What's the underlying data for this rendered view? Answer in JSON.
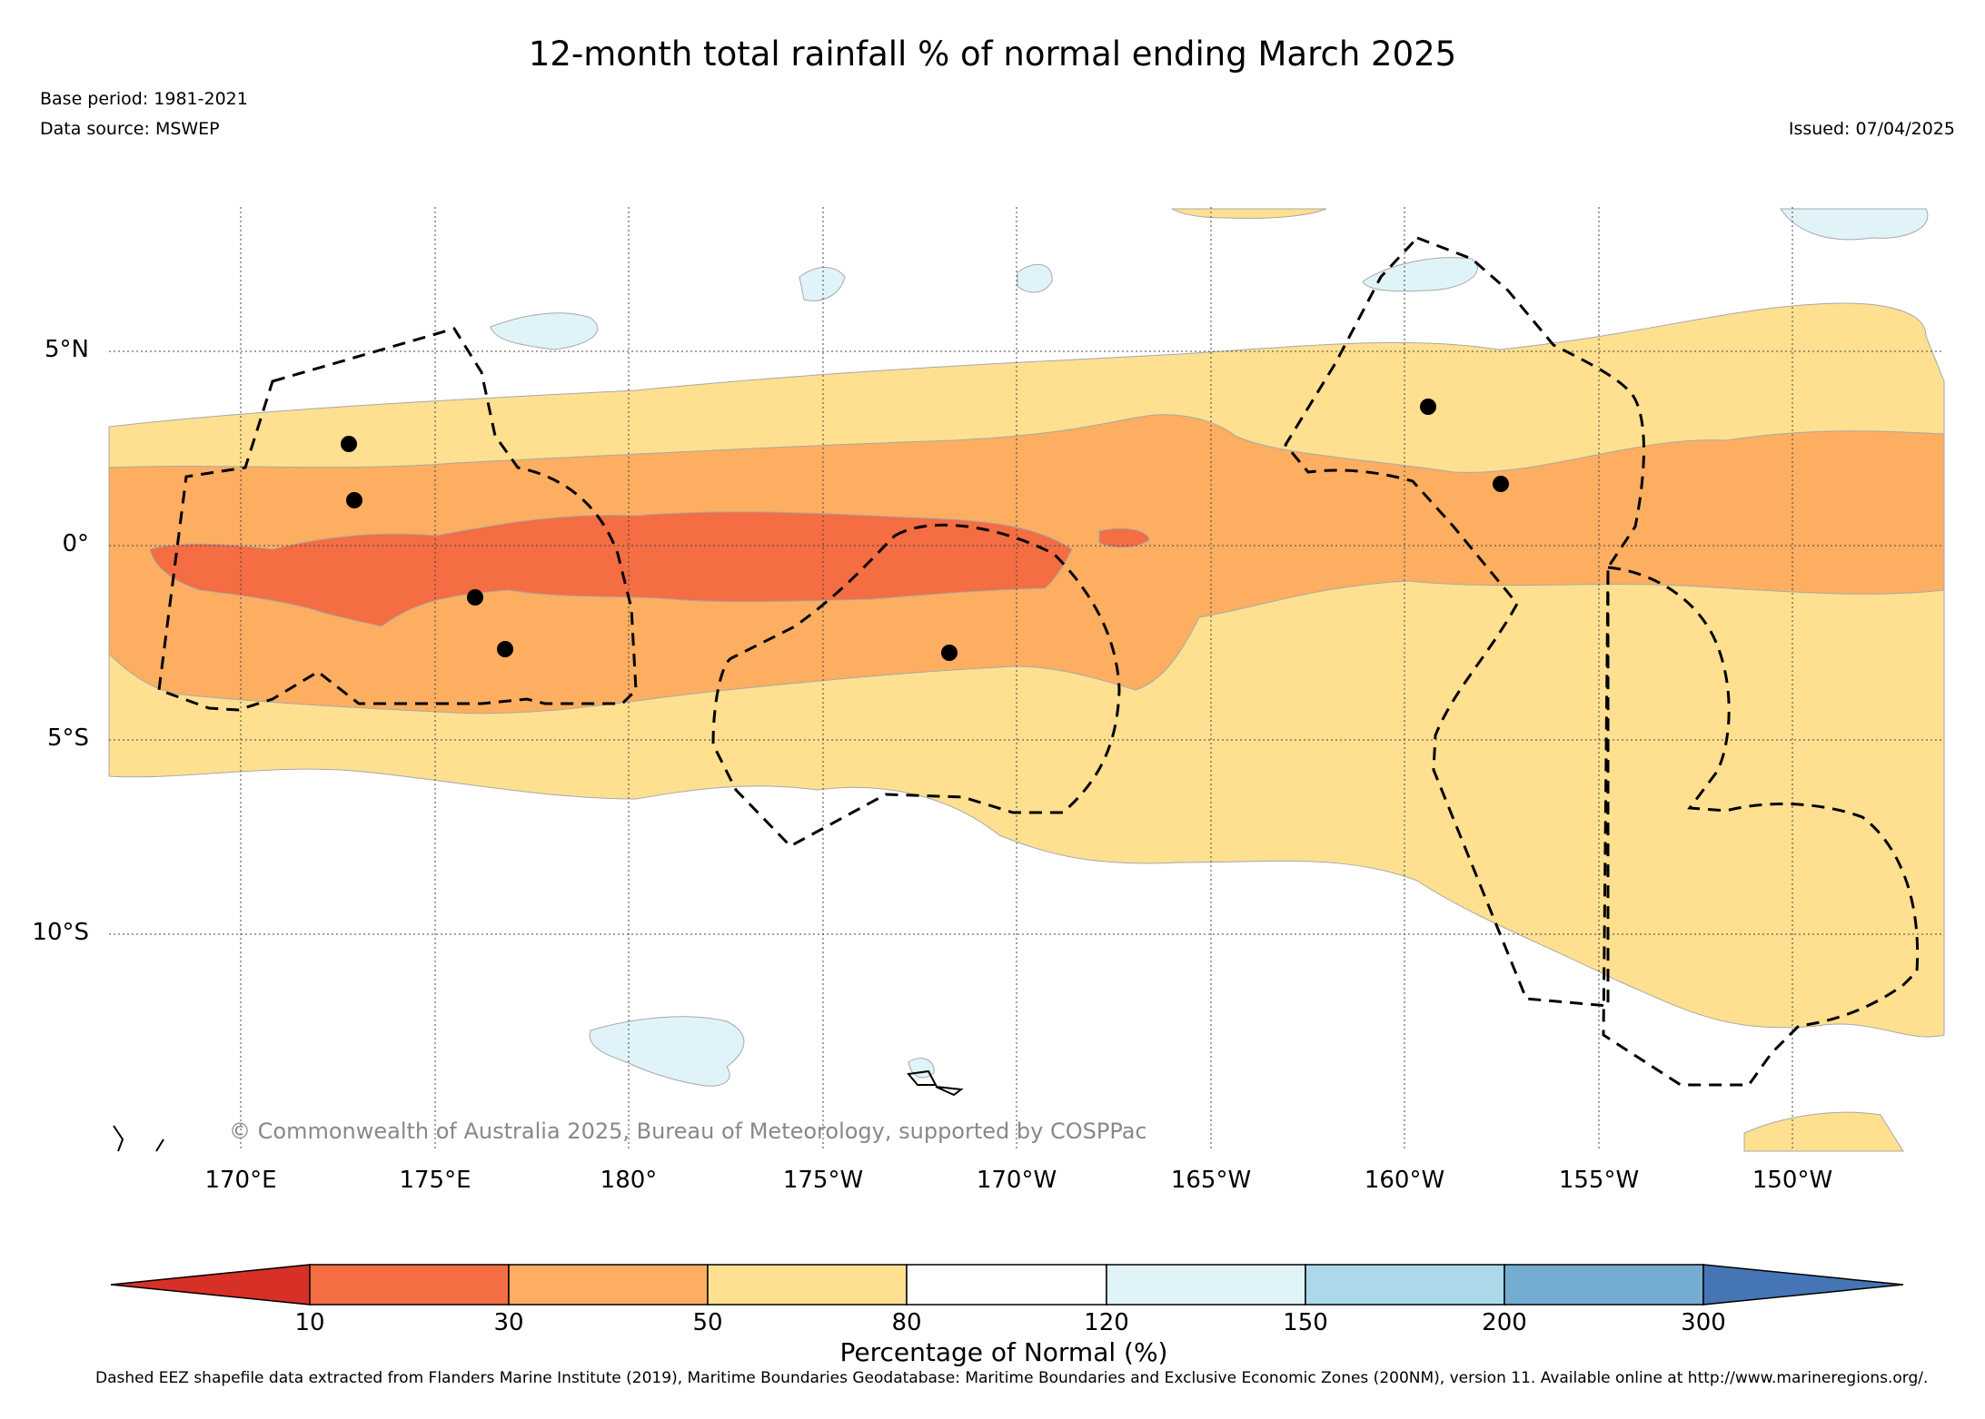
{
  "title": "12-month total rainfall % of normal ending March 2025",
  "base_period": "Base period: 1981-2021",
  "data_source": "Data source: MSWEP",
  "issued": "Issued: 07/04/2025",
  "copyright": "© Commonwealth of Australia 2025, Bureau of Meteorology, supported by COSPPac",
  "map": {
    "lat_labels": [
      "5°N",
      "0°",
      "5°S",
      "10°S"
    ],
    "lon_labels": [
      "170°E",
      "175°E",
      "180°",
      "175°W",
      "170°W",
      "165°W",
      "160°W",
      "155°W",
      "150°W"
    ],
    "legend_title": "Percentage of Normal (%)",
    "colorbar_ticks": [
      "10",
      "30",
      "50",
      "80",
      "120",
      "150",
      "200",
      "300"
    ],
    "colorbar_colors": [
      "#d73027",
      "#f46d43",
      "#fdae61",
      "#fee090",
      "#ffffff",
      "#e0f3f8",
      "#abd9e9",
      "#74add1",
      "#4575b4"
    ]
  },
  "footnote": "Dashed EEZ shapefile data extracted from Flanders Marine Institute (2019), Maritime Boundaries Geodatabase: Maritime Boundaries and Exclusive Economic Zones (200NM), version 11. Available online at http://www.marineregions.org/."
}
